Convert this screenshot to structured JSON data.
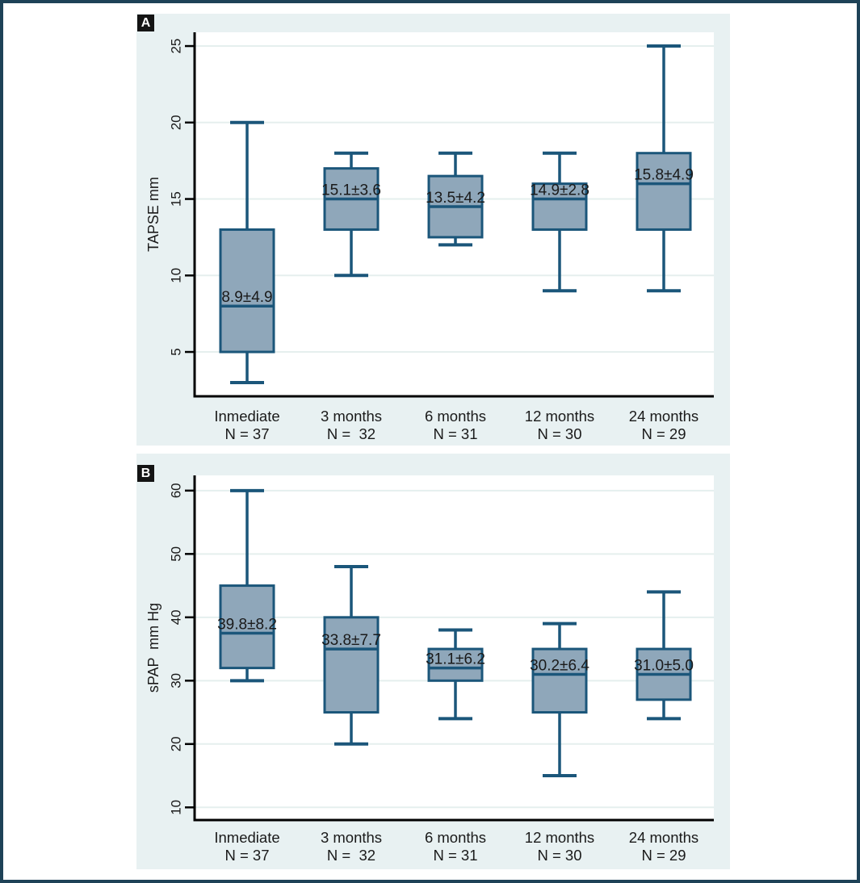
{
  "figure": {
    "panel_a_letter": "A",
    "panel_b_letter": "B"
  },
  "colors": {
    "frame": "#1e4257",
    "panel_background": "#e8f1f2",
    "plot_background": "#ffffff",
    "gridline": "#e5efee",
    "axis": "#000000",
    "box_fill": "#8fa7ba",
    "box_stroke": "#1b567a",
    "text": "#1a1a1a"
  },
  "chart_data": [
    {
      "type": "box",
      "panel_label": "A",
      "ylabel": "TAPSE mm",
      "yticks": [
        5,
        10,
        15,
        20,
        25
      ],
      "ylim": [
        2.1,
        25.9
      ],
      "grid": true,
      "legend": "none",
      "categories": [
        "Inmediate",
        "3 months",
        "6 months",
        "12 months",
        "24 months"
      ],
      "n_labels": [
        "N = 37",
        "N =  32",
        "N = 31",
        "N = 30",
        "N = 29"
      ],
      "series": [
        {
          "category": "Inmediate",
          "whisker_low": 3,
          "q1": 5,
          "median": 8,
          "q3": 13,
          "whisker_high": 20,
          "label": "8.9±4.9"
        },
        {
          "category": "3 months",
          "whisker_low": 10,
          "q1": 13,
          "median": 15,
          "q3": 17,
          "whisker_high": 18,
          "label": "15.1±3.6"
        },
        {
          "category": "6 months",
          "whisker_low": 12,
          "q1": 12.5,
          "median": 14.5,
          "q3": 16.5,
          "whisker_high": 18,
          "label": "13.5±4.2"
        },
        {
          "category": "12 months",
          "whisker_low": 9,
          "q1": 13,
          "median": 15,
          "q3": 16,
          "whisker_high": 18,
          "label": "14.9±2.8"
        },
        {
          "category": "24 months",
          "whisker_low": 9,
          "q1": 13,
          "median": 16,
          "q3": 18,
          "whisker_high": 25,
          "label": "15.8±4.9"
        }
      ]
    },
    {
      "type": "box",
      "panel_label": "B",
      "ylabel": "sPAP  mm Hg",
      "yticks": [
        10,
        20,
        30,
        40,
        50,
        60
      ],
      "ylim": [
        8,
        62.4
      ],
      "grid": true,
      "legend": "none",
      "categories": [
        "Inmediate",
        "3 months",
        "6 months",
        "12 months",
        "24 months"
      ],
      "n_labels": [
        "N = 37",
        "N =  32",
        "N = 31",
        "N = 30",
        "N = 29"
      ],
      "series": [
        {
          "category": "Inmediate",
          "whisker_low": 30,
          "q1": 32,
          "median": 37.5,
          "q3": 45,
          "whisker_high": 60,
          "label": "39.8±8.2"
        },
        {
          "category": "3 months",
          "whisker_low": 20,
          "q1": 25,
          "median": 35,
          "q3": 40,
          "whisker_high": 48,
          "label": "33.8±7.7"
        },
        {
          "category": "6 months",
          "whisker_low": 24,
          "q1": 30,
          "median": 32,
          "q3": 35,
          "whisker_high": 38,
          "label": "31.1±6.2"
        },
        {
          "category": "12 months",
          "whisker_low": 15,
          "q1": 25,
          "median": 31,
          "q3": 35,
          "whisker_high": 39,
          "label": "30.2±6.4"
        },
        {
          "category": "24 months",
          "whisker_low": 24,
          "q1": 27,
          "median": 31,
          "q3": 35,
          "whisker_high": 44,
          "label": "31.0±5.0"
        }
      ]
    }
  ]
}
